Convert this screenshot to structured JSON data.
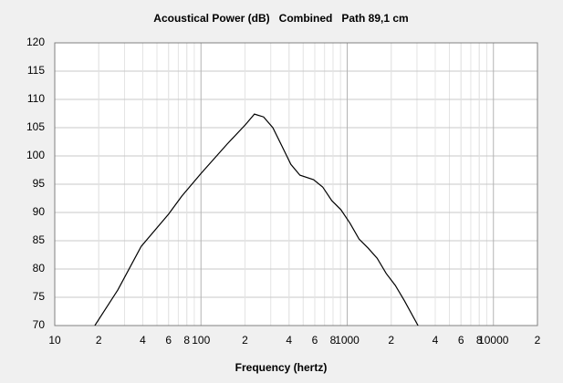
{
  "chart_data": {
    "type": "line",
    "title": "Acoustical Power (dB)   Combined   Path 89,1 cm",
    "x_label": "Frequency (hertz)",
    "x_log": true,
    "grid": true,
    "xlim": [
      10,
      20000
    ],
    "ylim": [
      70,
      120
    ],
    "xticks": [
      10,
      {
        "value": 20,
        "label": "2"
      },
      {
        "value": 40,
        "label": "4"
      },
      {
        "value": 60,
        "label": "6"
      },
      {
        "value": 80,
        "label": "8"
      },
      100,
      {
        "value": 200,
        "label": "2"
      },
      {
        "value": 400,
        "label": "4"
      },
      {
        "value": 600,
        "label": "6"
      },
      {
        "value": 800,
        "label": "8"
      },
      1000,
      {
        "value": 2000,
        "label": "2"
      },
      {
        "value": 4000,
        "label": "4"
      },
      {
        "value": 6000,
        "label": "6"
      },
      {
        "value": 8000,
        "label": "8"
      },
      10000,
      {
        "value": 20000,
        "label": "2"
      }
    ],
    "yticks": [
      70,
      75,
      80,
      85,
      90,
      95,
      100,
      105,
      110,
      115,
      120
    ],
    "x": [
      18.8,
      27,
      39,
      60,
      74,
      100,
      151,
      201,
      232,
      268,
      310,
      357,
      412,
      475,
      589,
      680,
      784,
      905,
      1045,
      1205,
      1390,
      1603,
      1849,
      2133,
      2460,
      3050
    ],
    "series": [
      {
        "color": "#000000",
        "values": [
          70,
          76.3,
          84,
          89.7,
          92.9,
          96.9,
          102.1,
          105.5,
          107.4,
          106.9,
          105,
          101.8,
          98.5,
          96.6,
          95.8,
          94.5,
          92.1,
          90.5,
          88.1,
          85.3,
          83.7,
          81.9,
          79.2,
          77.1,
          74.4,
          70
        ]
      }
    ]
  }
}
